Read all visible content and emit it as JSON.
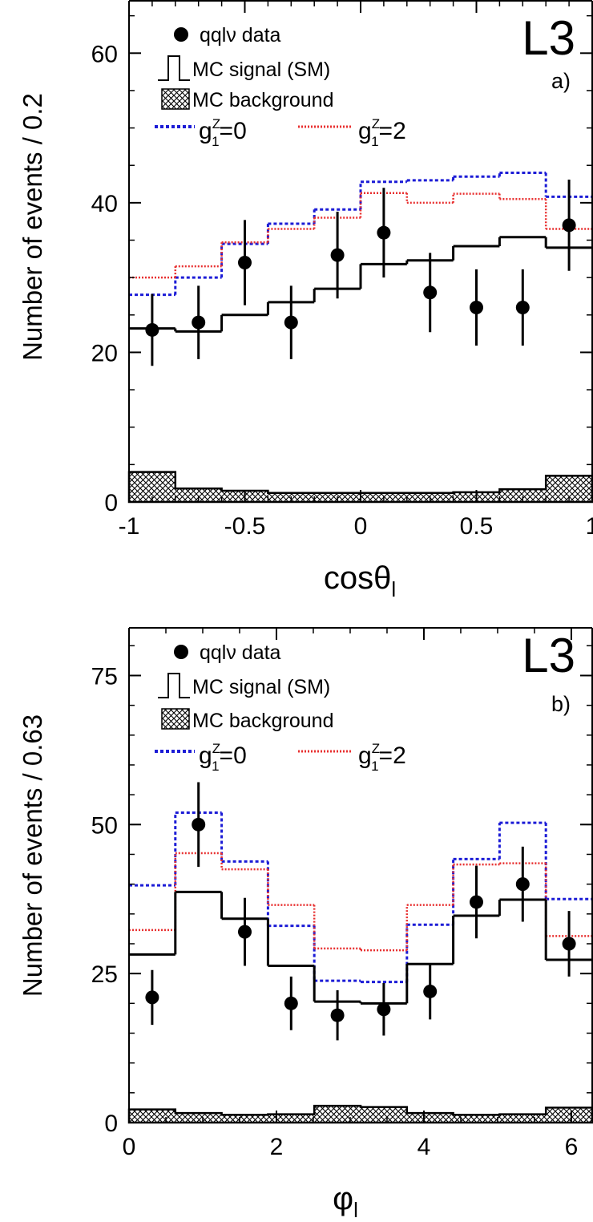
{
  "colors": {
    "data": "#000000",
    "mc_signal": "#000000",
    "g1z_0": "#1c1cd6",
    "g1z_2": "#e83030",
    "background_hatch": "#000000"
  },
  "chart_data": [
    {
      "type": "histogram",
      "panel_label": "a)",
      "experiment_label": "L3",
      "xlabel_main": "cos",
      "xlabel_symbol": "θ",
      "xlabel_sub": "l",
      "ylabel": "Number of events / 0.2",
      "xlim": [
        -1,
        1
      ],
      "ylim": [
        0,
        67
      ],
      "x_ticks": [
        -1,
        -0.5,
        0,
        0.5,
        1
      ],
      "x_tick_labels": [
        "-1",
        "-0.5",
        "0",
        "0.5",
        "1"
      ],
      "y_ticks": [
        0,
        20,
        40,
        60
      ],
      "y_tick_labels": [
        "0",
        "20",
        "40",
        "60"
      ],
      "bin_edges": [
        -1,
        -0.8,
        -0.6,
        -0.4,
        -0.2,
        0,
        0.2,
        0.4,
        0.6,
        0.8,
        1
      ],
      "legend": {
        "data": "qqlν data",
        "signal": "MC signal (SM)",
        "background": "MC background",
        "g0_main": "g",
        "g0_sup": "Z",
        "g0_sub": "1",
        "g0_value": "=0",
        "g2_main": "g",
        "g2_sup": "Z",
        "g2_sub": "1",
        "g2_value": "=2"
      },
      "series": [
        {
          "name": "MC signal (SM)",
          "style": "solid",
          "values": [
            23.2,
            22.8,
            25.0,
            26.7,
            28.5,
            31.8,
            32.3,
            34.2,
            35.4,
            34.0
          ]
        },
        {
          "name": "MC background",
          "style": "hatched",
          "values": [
            4.0,
            1.8,
            1.5,
            1.2,
            1.2,
            1.2,
            1.2,
            1.3,
            1.7,
            3.5
          ]
        },
        {
          "name": "g1Z=0",
          "style": "dotted-blue",
          "values": [
            27.7,
            30.0,
            34.5,
            37.2,
            39.1,
            42.8,
            43.0,
            43.5,
            44.0,
            40.8
          ]
        },
        {
          "name": "g1Z=2",
          "style": "dotted-red",
          "values": [
            30.0,
            31.5,
            34.7,
            36.5,
            38.0,
            41.3,
            40.0,
            41.2,
            40.5,
            36.5
          ]
        }
      ],
      "data_points": {
        "x": [
          -0.9,
          -0.7,
          -0.5,
          -0.3,
          -0.1,
          0.1,
          0.3,
          0.5,
          0.7,
          0.9
        ],
        "y": [
          23,
          24,
          32,
          24,
          33,
          36,
          28,
          26,
          26,
          37
        ],
        "err": [
          4.8,
          4.9,
          5.7,
          4.9,
          5.8,
          6.0,
          5.3,
          5.1,
          5.1,
          6.1
        ]
      }
    },
    {
      "type": "histogram",
      "panel_label": "b)",
      "experiment_label": "L3",
      "xlabel_main": "",
      "xlabel_symbol": "φ",
      "xlabel_sub": "l",
      "ylabel": "Number of events / 0.63",
      "xlim": [
        0,
        6.2832
      ],
      "ylim": [
        0,
        83
      ],
      "x_ticks": [
        0,
        2,
        4,
        6
      ],
      "x_tick_labels": [
        "0",
        "2",
        "4",
        "6"
      ],
      "y_ticks": [
        0,
        25,
        50,
        75
      ],
      "y_tick_labels": [
        "0",
        "25",
        "50",
        "75"
      ],
      "bin_edges": [
        0,
        0.6283,
        1.2566,
        1.885,
        2.5133,
        3.1416,
        3.7699,
        4.3982,
        5.0265,
        5.6549,
        6.2832
      ],
      "legend": {
        "data": "qqlν data",
        "signal": "MC signal (SM)",
        "background": "MC background",
        "g0_main": "g",
        "g0_sup": "Z",
        "g0_sub": "1",
        "g0_value": "=0",
        "g2_main": "g",
        "g2_sup": "Z",
        "g2_sub": "1",
        "g2_value": "=2"
      },
      "series": [
        {
          "name": "MC signal (SM)",
          "style": "solid",
          "values": [
            28.2,
            38.7,
            34.2,
            26.3,
            20.3,
            20.0,
            26.6,
            34.7,
            37.4,
            27.3
          ]
        },
        {
          "name": "MC background",
          "style": "hatched",
          "values": [
            2.2,
            1.6,
            1.3,
            1.4,
            2.8,
            2.6,
            1.6,
            1.3,
            1.4,
            2.5
          ]
        },
        {
          "name": "g1Z=0",
          "style": "dotted-blue",
          "values": [
            39.8,
            52.0,
            43.8,
            33.0,
            23.8,
            23.6,
            33.2,
            44.2,
            50.3,
            37.5
          ]
        },
        {
          "name": "g1Z=2",
          "style": "dotted-red",
          "values": [
            32.3,
            45.2,
            42.5,
            36.5,
            29.2,
            28.9,
            36.5,
            43.3,
            43.5,
            31.3
          ]
        }
      ],
      "data_points": {
        "x": [
          0.3142,
          0.9425,
          1.5708,
          2.1991,
          2.8274,
          3.4558,
          4.0841,
          4.7124,
          5.3407,
          5.969
        ],
        "y": [
          21,
          50,
          32,
          20,
          18,
          19,
          22,
          37,
          40,
          30
        ],
        "err": [
          4.6,
          7.1,
          5.7,
          4.5,
          4.2,
          4.4,
          4.7,
          6.1,
          6.3,
          5.5
        ]
      }
    }
  ]
}
